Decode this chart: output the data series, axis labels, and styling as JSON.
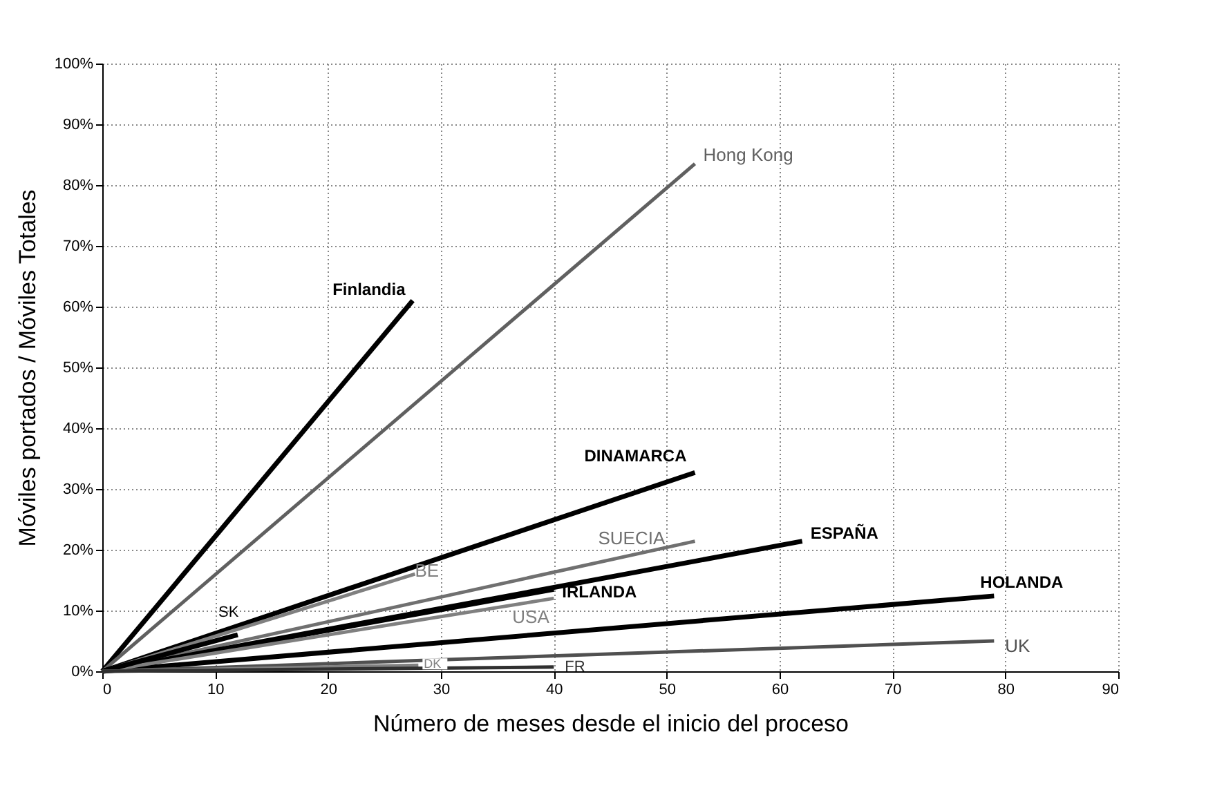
{
  "chart_data": {
    "type": "line",
    "xlabel": "Número de meses desde el inicio del proceso",
    "ylabel": "Móviles portados / Móviles Totales",
    "xlim": [
      0,
      90
    ],
    "xticks": [
      0,
      10,
      20,
      30,
      40,
      50,
      60,
      70,
      80,
      90
    ],
    "ylim": [
      0,
      100
    ],
    "yticks": [
      {
        "value": 0,
        "label": "0%"
      },
      {
        "value": 10,
        "label": "10%"
      },
      {
        "value": 20,
        "label": "20%"
      },
      {
        "value": 30,
        "label": "30%"
      },
      {
        "value": 40,
        "label": "40%"
      },
      {
        "value": 50,
        "label": "50%"
      },
      {
        "value": 60,
        "label": "60%"
      },
      {
        "value": 70,
        "label": "70%"
      },
      {
        "value": 80,
        "label": "80%"
      },
      {
        "value": 90,
        "label": "90%"
      },
      {
        "value": 100,
        "label": "100%"
      }
    ],
    "grid": true,
    "marker": "none",
    "line_style": "solid",
    "series": [
      {
        "name": "Finlandia",
        "color": "#000000",
        "x": [
          0,
          27.5
        ],
        "values": [
          0,
          61
        ]
      },
      {
        "name": "Hong Kong",
        "color": "#606060",
        "x": [
          0,
          52.5
        ],
        "values": [
          0,
          83.5
        ]
      },
      {
        "name": "DINAMARCA",
        "color": "#000000",
        "x": [
          0,
          52.5
        ],
        "values": [
          0,
          32.7
        ]
      },
      {
        "name": "SUECIA",
        "color": "#707070",
        "x": [
          0,
          52.5
        ],
        "values": [
          0,
          21.4
        ]
      },
      {
        "name": "ESPAÑA",
        "color": "#000000",
        "x": [
          0,
          62
        ],
        "values": [
          0,
          21.4
        ]
      },
      {
        "name": "HOLANDA",
        "color": "#000000",
        "x": [
          0,
          79
        ],
        "values": [
          0,
          12.4
        ]
      },
      {
        "name": "UK",
        "color": "#505050",
        "x": [
          0,
          79
        ],
        "values": [
          0,
          5
        ]
      },
      {
        "name": "IRLANDA",
        "color": "#000000",
        "x": [
          0,
          40
        ],
        "values": [
          0,
          13.5
        ]
      },
      {
        "name": "USA",
        "color": "#808080",
        "x": [
          0,
          40
        ],
        "values": [
          0,
          12
        ]
      },
      {
        "name": "BE",
        "color": "#808080",
        "x": [
          0,
          27.7
        ],
        "values": [
          0,
          16
        ]
      },
      {
        "name": "SK",
        "color": "#000000",
        "x": [
          0,
          12
        ],
        "values": [
          0,
          6
        ]
      },
      {
        "name": "DK",
        "color": "#808080",
        "x": [
          0,
          28
        ],
        "values": [
          0,
          1
        ]
      },
      {
        "name": "FR",
        "color": "#303030",
        "x": [
          0,
          40
        ],
        "values": [
          0,
          0.7
        ]
      }
    ]
  }
}
